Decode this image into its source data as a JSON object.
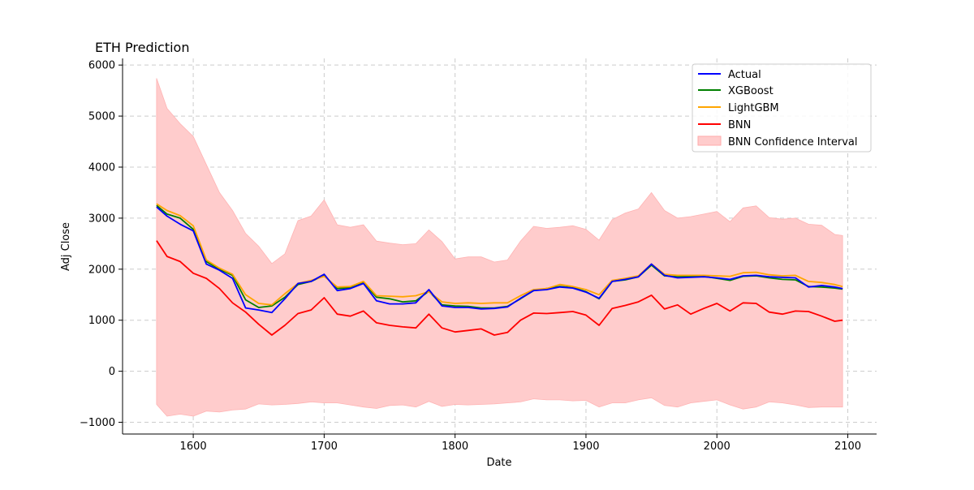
{
  "chart_data": {
    "type": "line",
    "title": "ETH Prediction",
    "xlabel": "Date",
    "ylabel": "Adj Close",
    "xlim": [
      1546,
      2122
    ],
    "ylim": [
      -1230,
      6130
    ],
    "x_ticks": [
      1600,
      1700,
      1800,
      1900,
      2000,
      2100
    ],
    "y_ticks": [
      -1000,
      0,
      1000,
      2000,
      3000,
      4000,
      5000,
      6000
    ],
    "x_tick_labels": [
      "1600",
      "1700",
      "1800",
      "1900",
      "2000",
      "2100"
    ],
    "y_tick_labels": [
      "−1000",
      "0",
      "1000",
      "2000",
      "3000",
      "4000",
      "5000",
      "6000"
    ],
    "grid": true,
    "legend_position": "top-right",
    "x": [
      1572,
      1580,
      1590,
      1600,
      1610,
      1620,
      1630,
      1640,
      1650,
      1660,
      1670,
      1680,
      1690,
      1700,
      1710,
      1720,
      1730,
      1740,
      1750,
      1760,
      1770,
      1780,
      1790,
      1800,
      1810,
      1820,
      1830,
      1840,
      1850,
      1860,
      1870,
      1880,
      1890,
      1900,
      1910,
      1920,
      1930,
      1940,
      1950,
      1960,
      1970,
      1980,
      1990,
      2000,
      2010,
      2020,
      2030,
      2040,
      2050,
      2060,
      2070,
      2080,
      2090,
      2096
    ],
    "series": [
      {
        "name": "Actual",
        "color": "#0000ff",
        "values": [
          3220,
          3040,
          2880,
          2750,
          2100,
          1980,
          1820,
          1240,
          1200,
          1150,
          1420,
          1720,
          1760,
          1900,
          1580,
          1620,
          1720,
          1380,
          1320,
          1320,
          1340,
          1600,
          1280,
          1250,
          1250,
          1220,
          1230,
          1260,
          1430,
          1580,
          1600,
          1650,
          1630,
          1550,
          1430,
          1760,
          1800,
          1850,
          2100,
          1880,
          1830,
          1840,
          1850,
          1830,
          1800,
          1870,
          1880,
          1850,
          1840,
          1830,
          1650,
          1680,
          1650,
          1620
        ]
      },
      {
        "name": "XGBoost",
        "color": "#008000",
        "values": [
          3250,
          3080,
          3000,
          2780,
          2150,
          2000,
          1880,
          1400,
          1250,
          1280,
          1450,
          1700,
          1760,
          1880,
          1620,
          1640,
          1740,
          1450,
          1420,
          1360,
          1380,
          1570,
          1300,
          1280,
          1270,
          1240,
          1240,
          1270,
          1420,
          1580,
          1620,
          1660,
          1640,
          1560,
          1420,
          1760,
          1790,
          1850,
          2080,
          1870,
          1850,
          1860,
          1860,
          1820,
          1780,
          1860,
          1870,
          1830,
          1800,
          1790,
          1660,
          1650,
          1630,
          1610
        ]
      },
      {
        "name": "LightGBM",
        "color": "#ffa500",
        "values": [
          3280,
          3150,
          3050,
          2850,
          2180,
          2020,
          1900,
          1500,
          1330,
          1300,
          1520,
          1720,
          1780,
          1860,
          1650,
          1660,
          1760,
          1480,
          1470,
          1460,
          1480,
          1560,
          1360,
          1330,
          1340,
          1330,
          1340,
          1340,
          1480,
          1600,
          1620,
          1700,
          1660,
          1600,
          1500,
          1780,
          1820,
          1870,
          2100,
          1900,
          1880,
          1880,
          1880,
          1870,
          1860,
          1930,
          1940,
          1890,
          1870,
          1880,
          1760,
          1740,
          1700,
          1660
        ]
      },
      {
        "name": "BNN",
        "color": "#ff0000",
        "values": [
          2560,
          2250,
          2150,
          1920,
          1820,
          1620,
          1340,
          1160,
          920,
          710,
          900,
          1130,
          1200,
          1440,
          1120,
          1080,
          1180,
          950,
          900,
          870,
          850,
          1120,
          850,
          770,
          800,
          830,
          710,
          760,
          1000,
          1140,
          1130,
          1150,
          1170,
          1100,
          900,
          1230,
          1290,
          1360,
          1490,
          1220,
          1300,
          1120,
          1230,
          1330,
          1180,
          1340,
          1330,
          1160,
          1120,
          1180,
          1170,
          1080,
          980,
          1000
        ]
      }
    ],
    "band": {
      "name": "BNN Confidence Interval",
      "color": "#ffcccc",
      "upper": [
        5740,
        5150,
        4850,
        4600,
        4050,
        3500,
        3150,
        2700,
        2450,
        2110,
        2300,
        2950,
        3040,
        3360,
        2870,
        2820,
        2870,
        2550,
        2510,
        2480,
        2500,
        2770,
        2540,
        2200,
        2240,
        2240,
        2140,
        2180,
        2550,
        2840,
        2800,
        2820,
        2850,
        2780,
        2570,
        2970,
        3100,
        3180,
        3500,
        3150,
        3000,
        3030,
        3080,
        3130,
        2930,
        3200,
        3240,
        3010,
        2980,
        3000,
        2880,
        2860,
        2680,
        2660
      ],
      "lower": [
        -650,
        -880,
        -840,
        -880,
        -780,
        -800,
        -760,
        -740,
        -640,
        -660,
        -650,
        -630,
        -600,
        -620,
        -620,
        -660,
        -700,
        -730,
        -670,
        -660,
        -700,
        -590,
        -690,
        -650,
        -660,
        -650,
        -640,
        -620,
        -600,
        -540,
        -560,
        -560,
        -580,
        -570,
        -700,
        -620,
        -620,
        -560,
        -520,
        -670,
        -700,
        -620,
        -590,
        -560,
        -660,
        -740,
        -700,
        -600,
        -620,
        -660,
        -710,
        -700,
        -700,
        -700
      ]
    }
  }
}
